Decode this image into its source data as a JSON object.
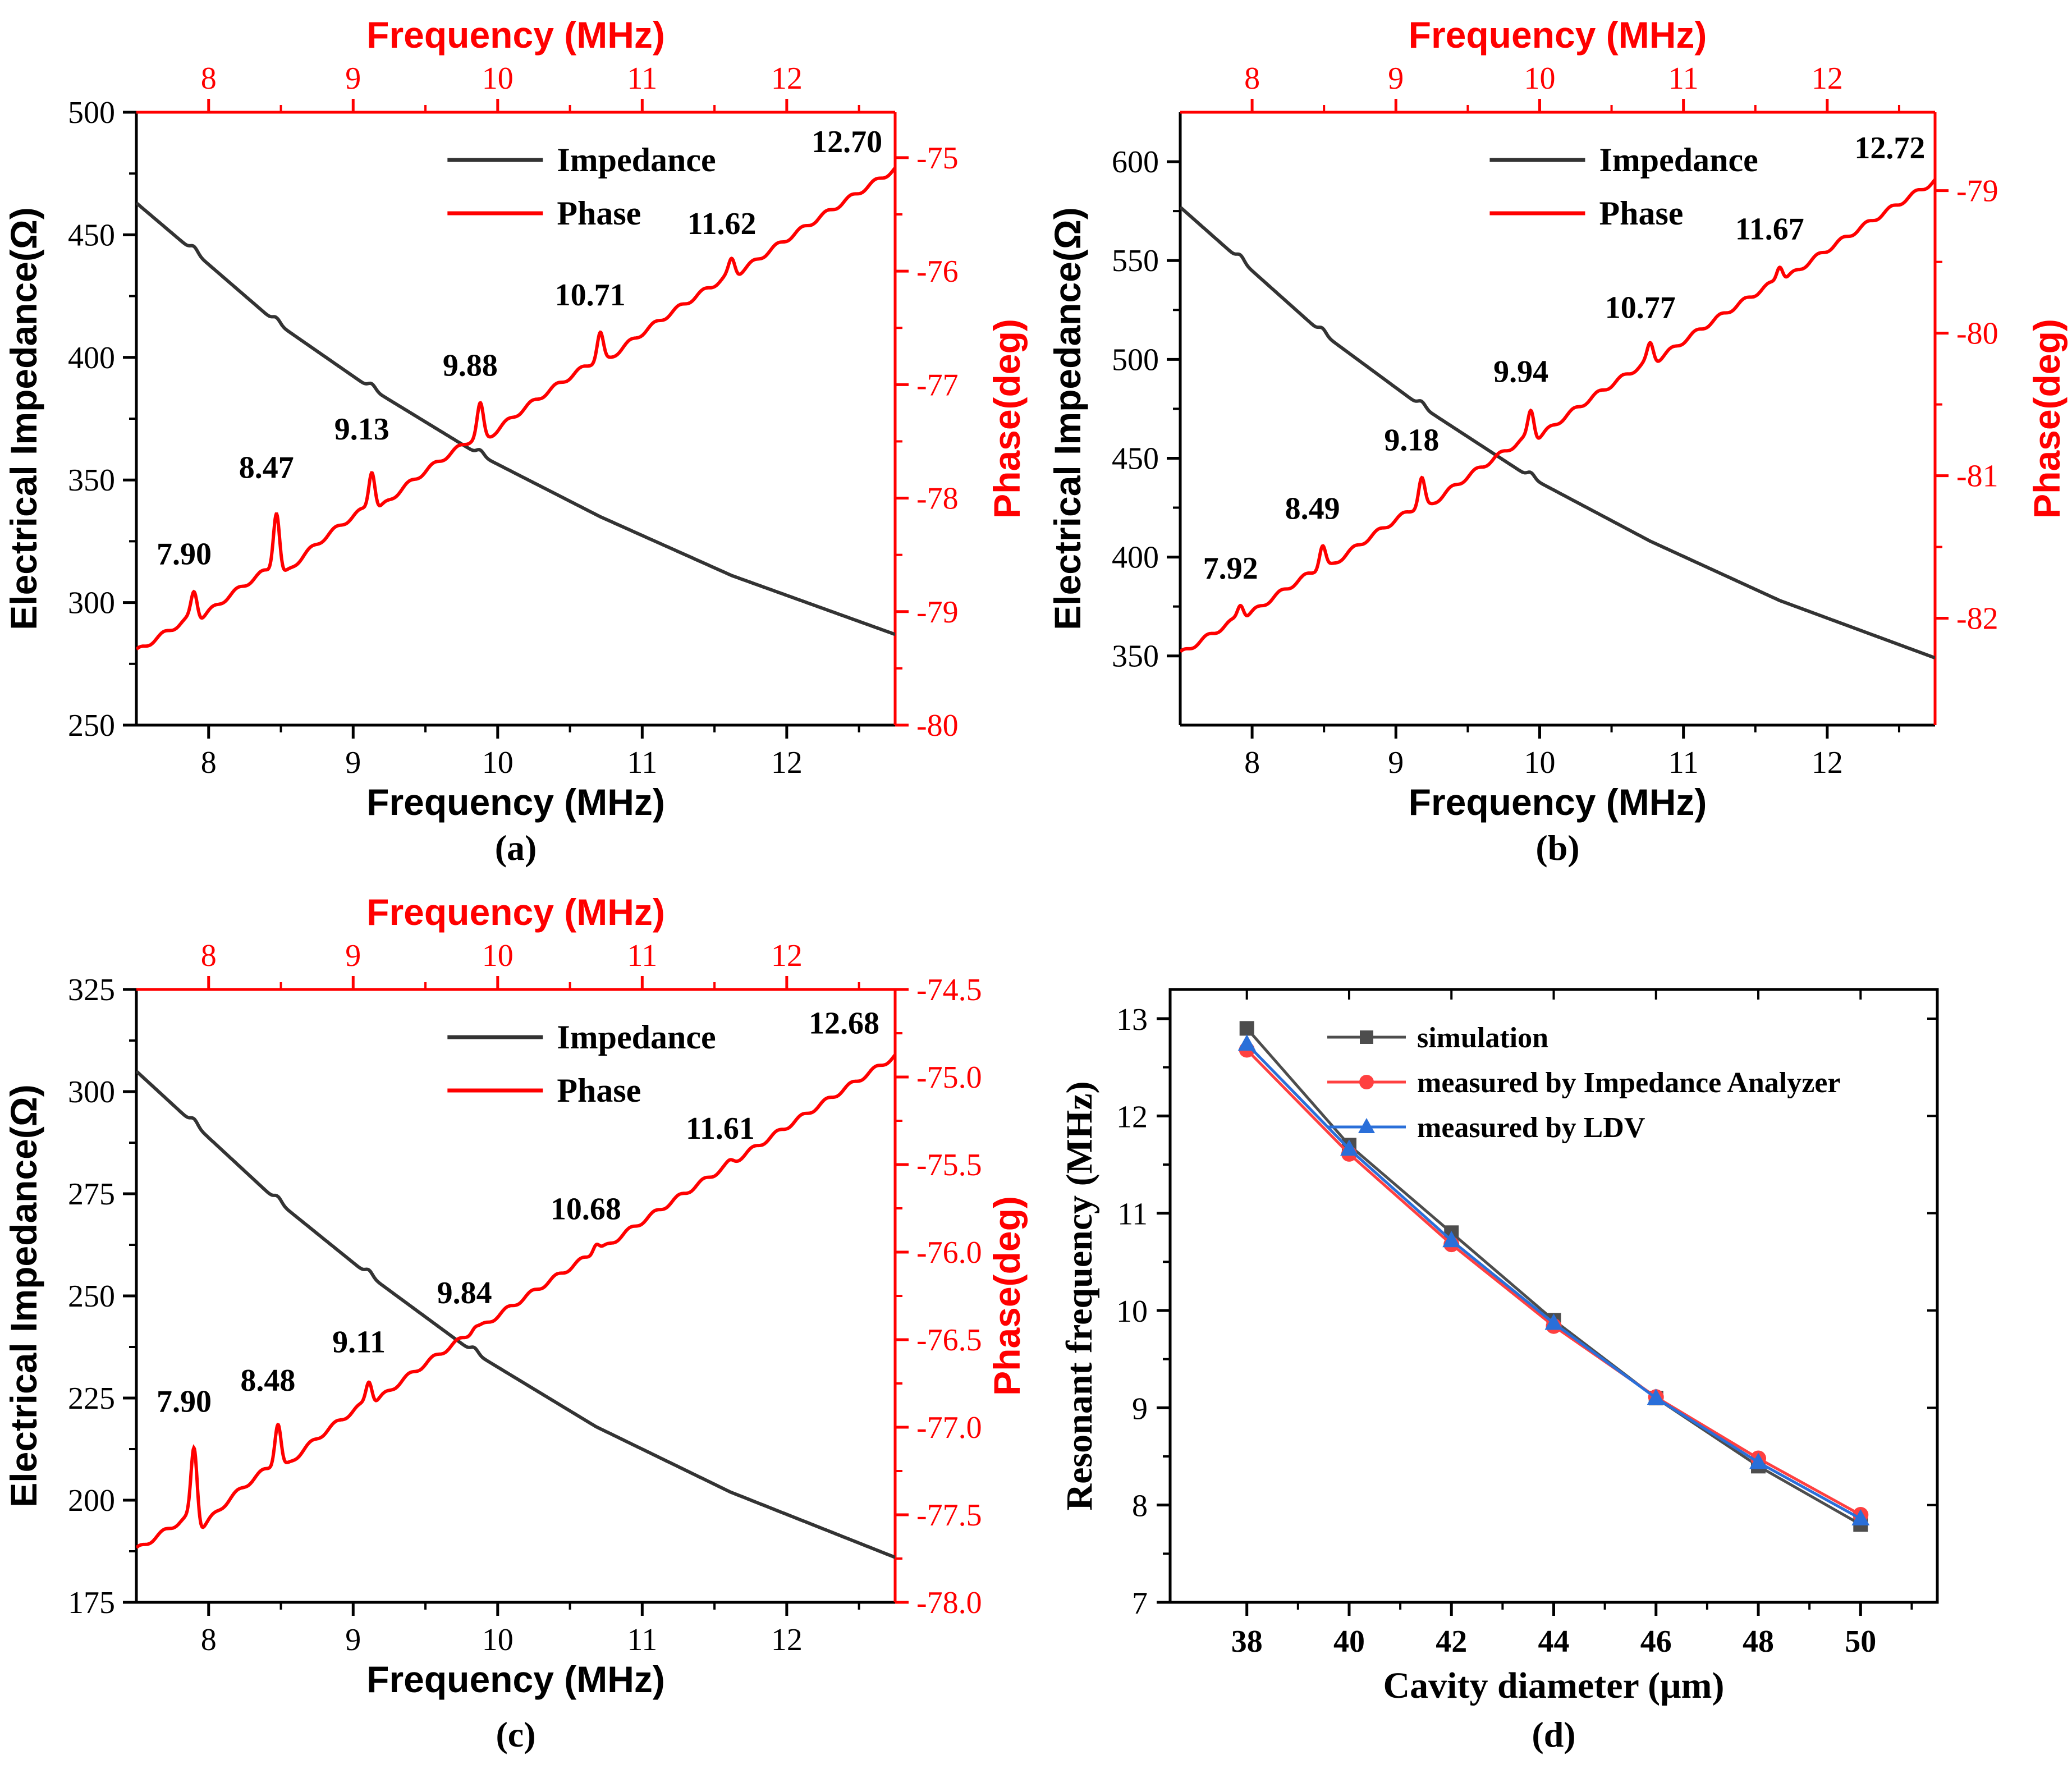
{
  "figure": {
    "panels": [
      {
        "caption": "(a)"
      },
      {
        "caption": "(b)"
      },
      {
        "caption": "(c)"
      },
      {
        "caption": "(d)"
      }
    ]
  },
  "colors": {
    "impedance": "#333333",
    "phase": "#ff0000",
    "simulation": "#4d4d4d",
    "analyzer": "#ff4040",
    "ldv": "#2a6fd9"
  },
  "chart_data": [
    {
      "type": "line",
      "panel": "(a)",
      "xlabel": "Frequency (MHz)",
      "x2label": "Frequency (MHz)",
      "ylabel": "Electrical Impedance(Ω)",
      "y2label": "Phase(deg)",
      "xlim": [
        7.5,
        12.75
      ],
      "ylim": [
        250,
        500
      ],
      "y2lim": [
        -80,
        -74.6
      ],
      "xticks": [
        "8",
        "9",
        "10",
        "11",
        "12"
      ],
      "yticks": [
        "250",
        "300",
        "350",
        "400",
        "450",
        "500"
      ],
      "y2ticks": [
        "-80",
        "-79",
        "-78",
        "-77",
        "-76",
        "-75"
      ],
      "y2tickvals": [
        -80,
        -79,
        -78,
        -77,
        -76,
        -75
      ],
      "legend": [
        "Impedance",
        "Phase"
      ],
      "legend_position": "top-center",
      "impedance": {
        "x": [
          7.5,
          7.9,
          8.47,
          9.13,
          9.88,
          10.71,
          11.62,
          12.75
        ],
        "y": [
          463,
          443,
          414,
          387,
          360,
          335,
          311,
          287
        ]
      },
      "phase": {
        "start": -79.35,
        "end": -75.1
      },
      "peaks": [
        {
          "label": "7.90",
          "x": 7.9,
          "y": -78.78
        },
        {
          "label": "8.47",
          "x": 8.47,
          "y": -78.02
        },
        {
          "label": "9.13",
          "x": 9.13,
          "y": -77.68
        },
        {
          "label": "9.88",
          "x": 9.88,
          "y": -77.12
        },
        {
          "label": "10.71",
          "x": 10.71,
          "y": -76.5
        },
        {
          "label": "11.62",
          "x": 11.62,
          "y": -75.87
        },
        {
          "label": "12.70",
          "x": 12.7,
          "y": -75.15
        }
      ]
    },
    {
      "type": "line",
      "panel": "(b)",
      "xlabel": "Frequency (MHz)",
      "x2label": "Frequency (MHz)",
      "ylabel": "Electrical Impedance(Ω)",
      "y2label": "Phase(deg)",
      "xlim": [
        7.5,
        12.75
      ],
      "ylim": [
        315,
        625
      ],
      "y2lim": [
        -82.75,
        -78.45
      ],
      "xticks": [
        "8",
        "9",
        "10",
        "11",
        "12"
      ],
      "yticks": [
        "350",
        "400",
        "450",
        "500",
        "550",
        "600"
      ],
      "y2ticks": [
        "-82",
        "-81",
        "-80",
        "-79"
      ],
      "y2tickvals": [
        -82,
        -81,
        -80,
        -79
      ],
      "legend": [
        "Impedance",
        "Phase"
      ],
      "legend_position": "top-center",
      "impedance": {
        "x": [
          7.5,
          7.92,
          8.49,
          9.18,
          9.94,
          10.77,
          11.67,
          12.75
        ],
        "y": [
          577,
          550,
          513,
          476,
          440,
          408,
          378,
          349
        ]
      },
      "phase": {
        "start": -82.25,
        "end": -78.93
      },
      "peaks": [
        {
          "label": "7.92",
          "x": 7.92,
          "y": -81.88
        },
        {
          "label": "8.49",
          "x": 8.49,
          "y": -81.46
        },
        {
          "label": "9.18",
          "x": 9.18,
          "y": -80.98
        },
        {
          "label": "9.94",
          "x": 9.94,
          "y": -80.5
        },
        {
          "label": "10.77",
          "x": 10.77,
          "y": -80.05
        },
        {
          "label": "11.67",
          "x": 11.67,
          "y": -79.5
        },
        {
          "label": "12.72",
          "x": 12.72,
          "y": -78.93
        }
      ]
    },
    {
      "type": "line",
      "panel": "(c)",
      "xlabel": "Frequency (MHz)",
      "x2label": "Frequency (MHz)",
      "ylabel": "Electrical Impedance(Ω)",
      "y2label": "Phase(deg)",
      "xlim": [
        7.5,
        12.75
      ],
      "ylim": [
        175,
        325
      ],
      "y2lim": [
        -78.0,
        -74.5
      ],
      "xticks": [
        "8",
        "9",
        "10",
        "11",
        "12"
      ],
      "yticks": [
        "175",
        "200",
        "225",
        "250",
        "275",
        "300",
        "325"
      ],
      "y2ticks": [
        "-78.0",
        "-77.5",
        "-77.0",
        "-76.5",
        "-76.0",
        "-75.5",
        "-75.0",
        "-74.5"
      ],
      "y2tickvals": [
        -78.0,
        -77.5,
        -77.0,
        -76.5,
        -76.0,
        -75.5,
        -75.0,
        -74.5
      ],
      "legend": [
        "Impedance",
        "Phase"
      ],
      "legend_position": "top-center",
      "impedance": {
        "x": [
          7.5,
          7.9,
          8.48,
          9.11,
          9.84,
          10.68,
          11.61,
          12.75
        ],
        "y": [
          305,
          292,
          273,
          255,
          236,
          218,
          202,
          186
        ]
      },
      "phase": {
        "start": -77.7,
        "end": -74.88
      },
      "peaks": [
        {
          "label": "7.90",
          "x": 7.9,
          "y": -77.04
        },
        {
          "label": "8.48",
          "x": 8.48,
          "y": -76.92
        },
        {
          "label": "9.11",
          "x": 9.11,
          "y": -76.7
        },
        {
          "label": "9.84",
          "x": 9.84,
          "y": -76.42
        },
        {
          "label": "10.68",
          "x": 10.68,
          "y": -75.94
        },
        {
          "label": "11.61",
          "x": 11.61,
          "y": -75.48
        },
        {
          "label": "12.68",
          "x": 12.68,
          "y": -74.88
        }
      ]
    },
    {
      "type": "line",
      "panel": "(d)",
      "xlabel": "Cavity diameter (μm)",
      "ylabel": "Resonant frequency (MHz)",
      "xlim": [
        36.5,
        51.5
      ],
      "ylim": [
        7,
        13.3
      ],
      "xticks": [
        "38",
        "40",
        "42",
        "44",
        "46",
        "48",
        "50"
      ],
      "xtickvals": [
        38,
        40,
        42,
        44,
        46,
        48,
        50
      ],
      "yticks": [
        "7",
        "8",
        "9",
        "10",
        "11",
        "12",
        "13"
      ],
      "ytickvals": [
        7,
        8,
        9,
        10,
        11,
        12,
        13
      ],
      "legend_position": "top-right",
      "x": [
        38,
        40,
        42,
        44,
        46,
        48,
        50
      ],
      "series": [
        {
          "name": "simulation",
          "marker": "square",
          "values": [
            12.9,
            11.7,
            10.8,
            9.9,
            9.1,
            8.4,
            7.8
          ]
        },
        {
          "name": "measured by Impedance Analyzer",
          "marker": "circle",
          "values": [
            12.68,
            11.61,
            10.68,
            9.84,
            9.11,
            8.48,
            7.9
          ]
        },
        {
          "name": "measured by LDV",
          "marker": "triangle",
          "values": [
            12.74,
            11.66,
            10.72,
            9.87,
            9.1,
            8.44,
            7.86
          ]
        }
      ]
    }
  ]
}
